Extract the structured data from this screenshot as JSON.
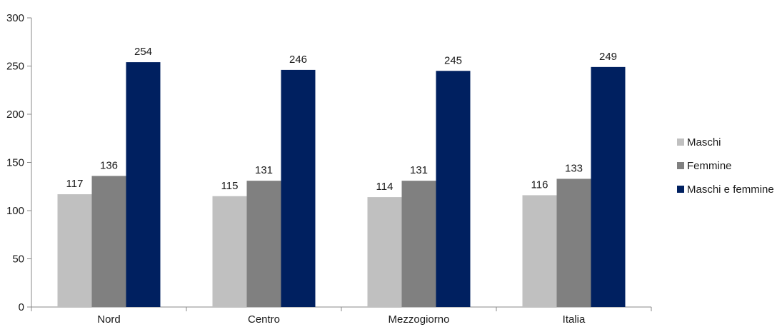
{
  "chart_data": {
    "type": "bar",
    "title": "",
    "xlabel": "",
    "ylabel": "",
    "categories": [
      "Nord",
      "Centro",
      "Mezzogiorno",
      "Italia"
    ],
    "ylim": [
      0,
      300
    ],
    "yticks": [
      0,
      50,
      100,
      150,
      200,
      250,
      300
    ],
    "grid": false,
    "legend_position": "right",
    "series": [
      {
        "name": "Maschi",
        "color": "#c0c0c0",
        "values": [
          117,
          115,
          114,
          116
        ]
      },
      {
        "name": "Femmine",
        "color": "#808080",
        "values": [
          136,
          131,
          131,
          133
        ]
      },
      {
        "name": "Maschi e femmine",
        "color": "#002060",
        "values": [
          254,
          246,
          245,
          249
        ]
      }
    ]
  }
}
